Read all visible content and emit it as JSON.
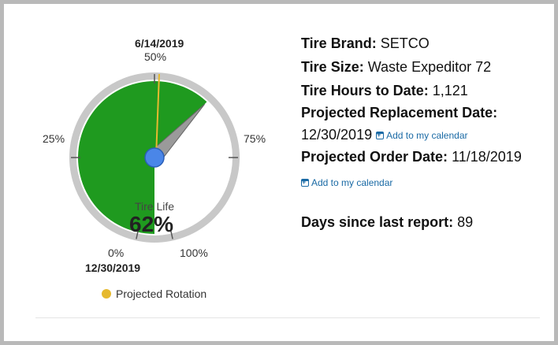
{
  "gauge": {
    "top_date": "6/14/2019",
    "bottom_date": "12/30/2019",
    "tick_labels": {
      "p0": "0%",
      "p25": "25%",
      "p50": "50%",
      "p75": "75%",
      "p100": "100%"
    },
    "tire_life_label": "Tire Life",
    "tire_life_value": "62%",
    "tire_life_fraction": 0.62,
    "projected_rotation_fraction": 0.5,
    "colors": {
      "fill": "#1f9a1f",
      "ring": "#c8c8c8",
      "needle": "#9a9a9a",
      "hub": "#4a86e8",
      "projected_line": "#e6b92f"
    }
  },
  "legend": {
    "label": "Projected Rotation",
    "color": "#e6b92f"
  },
  "info": {
    "tire_brand_label": "Tire Brand:",
    "tire_brand_value": "SETCO",
    "tire_size_label": "Tire Size:",
    "tire_size_value": "Waste Expeditor 72",
    "tire_hours_label": "Tire Hours to Date:",
    "tire_hours_value": "1,121",
    "projected_replacement_label": "Projected Replacement Date:",
    "projected_replacement_value": "12/30/2019",
    "add_calendar_1": "Add to my calendar",
    "projected_order_label": "Projected Order Date:",
    "projected_order_value": "11/18/2019",
    "add_calendar_2": "Add to my calendar",
    "days_since_label": "Days since last report:",
    "days_since_value": "89"
  }
}
